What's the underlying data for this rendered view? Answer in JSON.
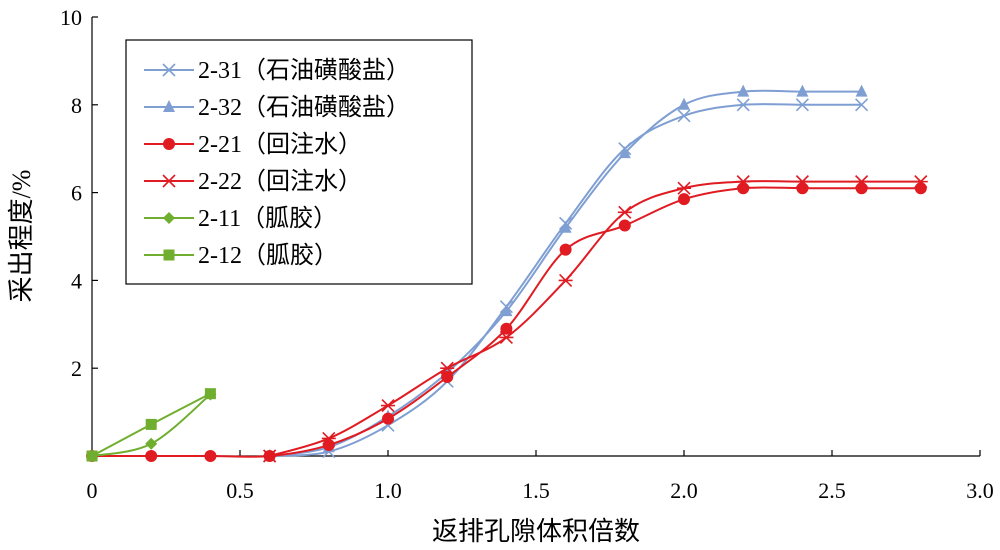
{
  "chart_data": {
    "type": "line",
    "title": "",
    "xlabel": "返排孔隙体积倍数",
    "ylabel": "采出程度/%",
    "xlim": [
      0,
      3.0
    ],
    "ylim": [
      0,
      10
    ],
    "xticks": [
      0,
      0.5,
      1.0,
      1.5,
      2.0,
      2.5,
      3.0
    ],
    "xtick_labels": [
      "0",
      "0.5",
      "1.0",
      "1.5",
      "2.0",
      "2.5",
      "3.0"
    ],
    "yticks": [
      2,
      4,
      6,
      8,
      10
    ],
    "ytick_labels": [
      "2",
      "4",
      "6",
      "8",
      "10"
    ],
    "grid": false,
    "legend_position": "top-left",
    "series": [
      {
        "name": "2-31（石油磺酸盐）",
        "color": "#7f9fd3",
        "marker": "x",
        "x": [
          0.6,
          0.8,
          1.0,
          1.2,
          1.4,
          1.6,
          1.8,
          2.0,
          2.2,
          2.4,
          2.6
        ],
        "y": [
          0,
          0.1,
          0.7,
          1.7,
          3.4,
          5.3,
          7.0,
          7.75,
          8.0,
          8.0,
          8.0
        ]
      },
      {
        "name": "2-32（石油磺酸盐）",
        "color": "#7f9fd3",
        "marker": "triangle",
        "x": [
          0.6,
          0.8,
          1.0,
          1.2,
          1.4,
          1.6,
          1.8,
          2.0,
          2.2,
          2.4,
          2.6
        ],
        "y": [
          0,
          0.2,
          0.9,
          1.9,
          3.3,
          5.2,
          6.9,
          8.0,
          8.3,
          8.3,
          8.3
        ]
      },
      {
        "name": "2-21（回注水）",
        "color": "#e01b22",
        "marker": "circle",
        "x": [
          0.0,
          0.2,
          0.4,
          0.6,
          0.8,
          1.0,
          1.2,
          1.4,
          1.6,
          1.8,
          2.0,
          2.2,
          2.4,
          2.6,
          2.8
        ],
        "y": [
          0,
          0,
          0,
          0,
          0.25,
          0.85,
          1.8,
          2.9,
          4.7,
          5.25,
          5.85,
          6.1,
          6.1,
          6.1,
          6.1
        ]
      },
      {
        "name": "2-22（回注水）",
        "color": "#e01b22",
        "marker": "asterisk",
        "x": [
          0.6,
          0.8,
          1.0,
          1.2,
          1.4,
          1.6,
          1.8,
          2.0,
          2.2,
          2.4,
          2.6,
          2.8
        ],
        "y": [
          0,
          0.4,
          1.15,
          2.0,
          2.7,
          4.0,
          5.55,
          6.1,
          6.25,
          6.25,
          6.25,
          6.25
        ]
      },
      {
        "name": "2-11（胍胶）",
        "color": "#6fae2e",
        "marker": "diamond",
        "x": [
          0.0,
          0.2,
          0.4
        ],
        "y": [
          0,
          0.28,
          1.4
        ]
      },
      {
        "name": "2-12（胍胶）",
        "color": "#6fae2e",
        "marker": "square",
        "x": [
          0.0,
          0.2,
          0.4
        ],
        "y": [
          0,
          0.72,
          1.42
        ]
      }
    ]
  }
}
